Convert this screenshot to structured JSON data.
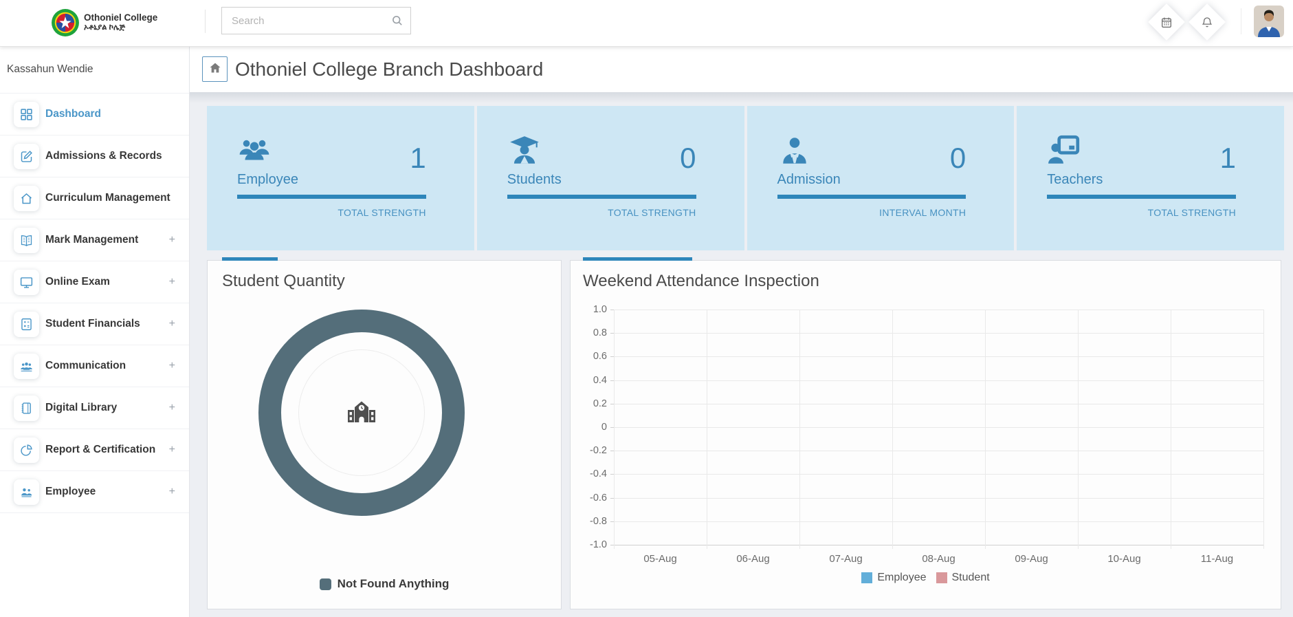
{
  "topbar": {
    "logo": {
      "title": "Othoniel College",
      "subtitle": "ኦቶኒያል ኮሌጅ"
    },
    "search": {
      "placeholder": "Search"
    }
  },
  "sidebar": {
    "user_name": "Kassahun Wendie",
    "expand_symbol": "+",
    "items": [
      {
        "label": "Dashboard",
        "icon": "dashboard-grid",
        "active": true,
        "expandable": false
      },
      {
        "label": "Admissions & Records",
        "icon": "edit-pen",
        "active": false,
        "expandable": false
      },
      {
        "label": "Curriculum Management",
        "icon": "home-outline",
        "active": false,
        "expandable": false
      },
      {
        "label": "Mark Management",
        "icon": "open-book",
        "active": false,
        "expandable": true
      },
      {
        "label": "Online Exam",
        "icon": "monitor",
        "active": false,
        "expandable": true
      },
      {
        "label": "Student Financials",
        "icon": "calculator",
        "active": false,
        "expandable": true
      },
      {
        "label": "Communication",
        "icon": "people-group",
        "active": false,
        "expandable": true
      },
      {
        "label": "Digital Library",
        "icon": "notebook",
        "active": false,
        "expandable": true
      },
      {
        "label": "Report & Certification",
        "icon": "pie-chart",
        "active": false,
        "expandable": true
      },
      {
        "label": "Employee",
        "icon": "people-duo",
        "active": false,
        "expandable": true
      }
    ]
  },
  "header": {
    "title": "Othoniel College Branch Dashboard"
  },
  "stats": {
    "cards": [
      {
        "label": "Employee",
        "value": "1",
        "caption": "TOTAL STRENGTH",
        "icon": "employees-group"
      },
      {
        "label": "Students",
        "value": "0",
        "caption": "TOTAL STRENGTH",
        "icon": "graduate-student"
      },
      {
        "label": "Admission",
        "value": "0",
        "caption": "INTERVAL MONTH",
        "icon": "person-tie"
      },
      {
        "label": "Teachers",
        "value": "1",
        "caption": "TOTAL STRENGTH",
        "icon": "teacher-board"
      }
    ]
  },
  "chart_data": [
    {
      "type": "pie",
      "title": "Student Quantity",
      "slices": [
        {
          "label": "Not Found Anything",
          "value": 100,
          "color": "#546e7a"
        }
      ],
      "center_icon": "school-building",
      "legend_position": "bottom"
    },
    {
      "type": "line",
      "title": "Weekend Attendance Inspection",
      "categories": [
        "05-Aug",
        "06-Aug",
        "07-Aug",
        "08-Aug",
        "09-Aug",
        "10-Aug",
        "11-Aug"
      ],
      "series": [
        {
          "name": "Employee",
          "color": "#62aed9",
          "values": []
        },
        {
          "name": "Student",
          "color": "#d9989b",
          "values": []
        }
      ],
      "ylim": [
        -1.0,
        1.0
      ],
      "ytick_step": 0.2,
      "yticks": [
        "1.0",
        "0.8",
        "0.6",
        "0.4",
        "0.2",
        "0",
        "-0.2",
        "-0.4",
        "-0.6",
        "-0.8",
        "-1.0"
      ],
      "grid": true,
      "legend_position": "bottom"
    }
  ],
  "colors": {
    "accent_blue": "#2e86ba",
    "card_bg": "#cee7f4",
    "card_text": "#3a86b8",
    "sidebar_active": "#4a96c8",
    "donut": "#546e7a",
    "legend_employee": "#62aed9",
    "legend_student": "#d9989b",
    "page_bg": "#edeff3"
  }
}
